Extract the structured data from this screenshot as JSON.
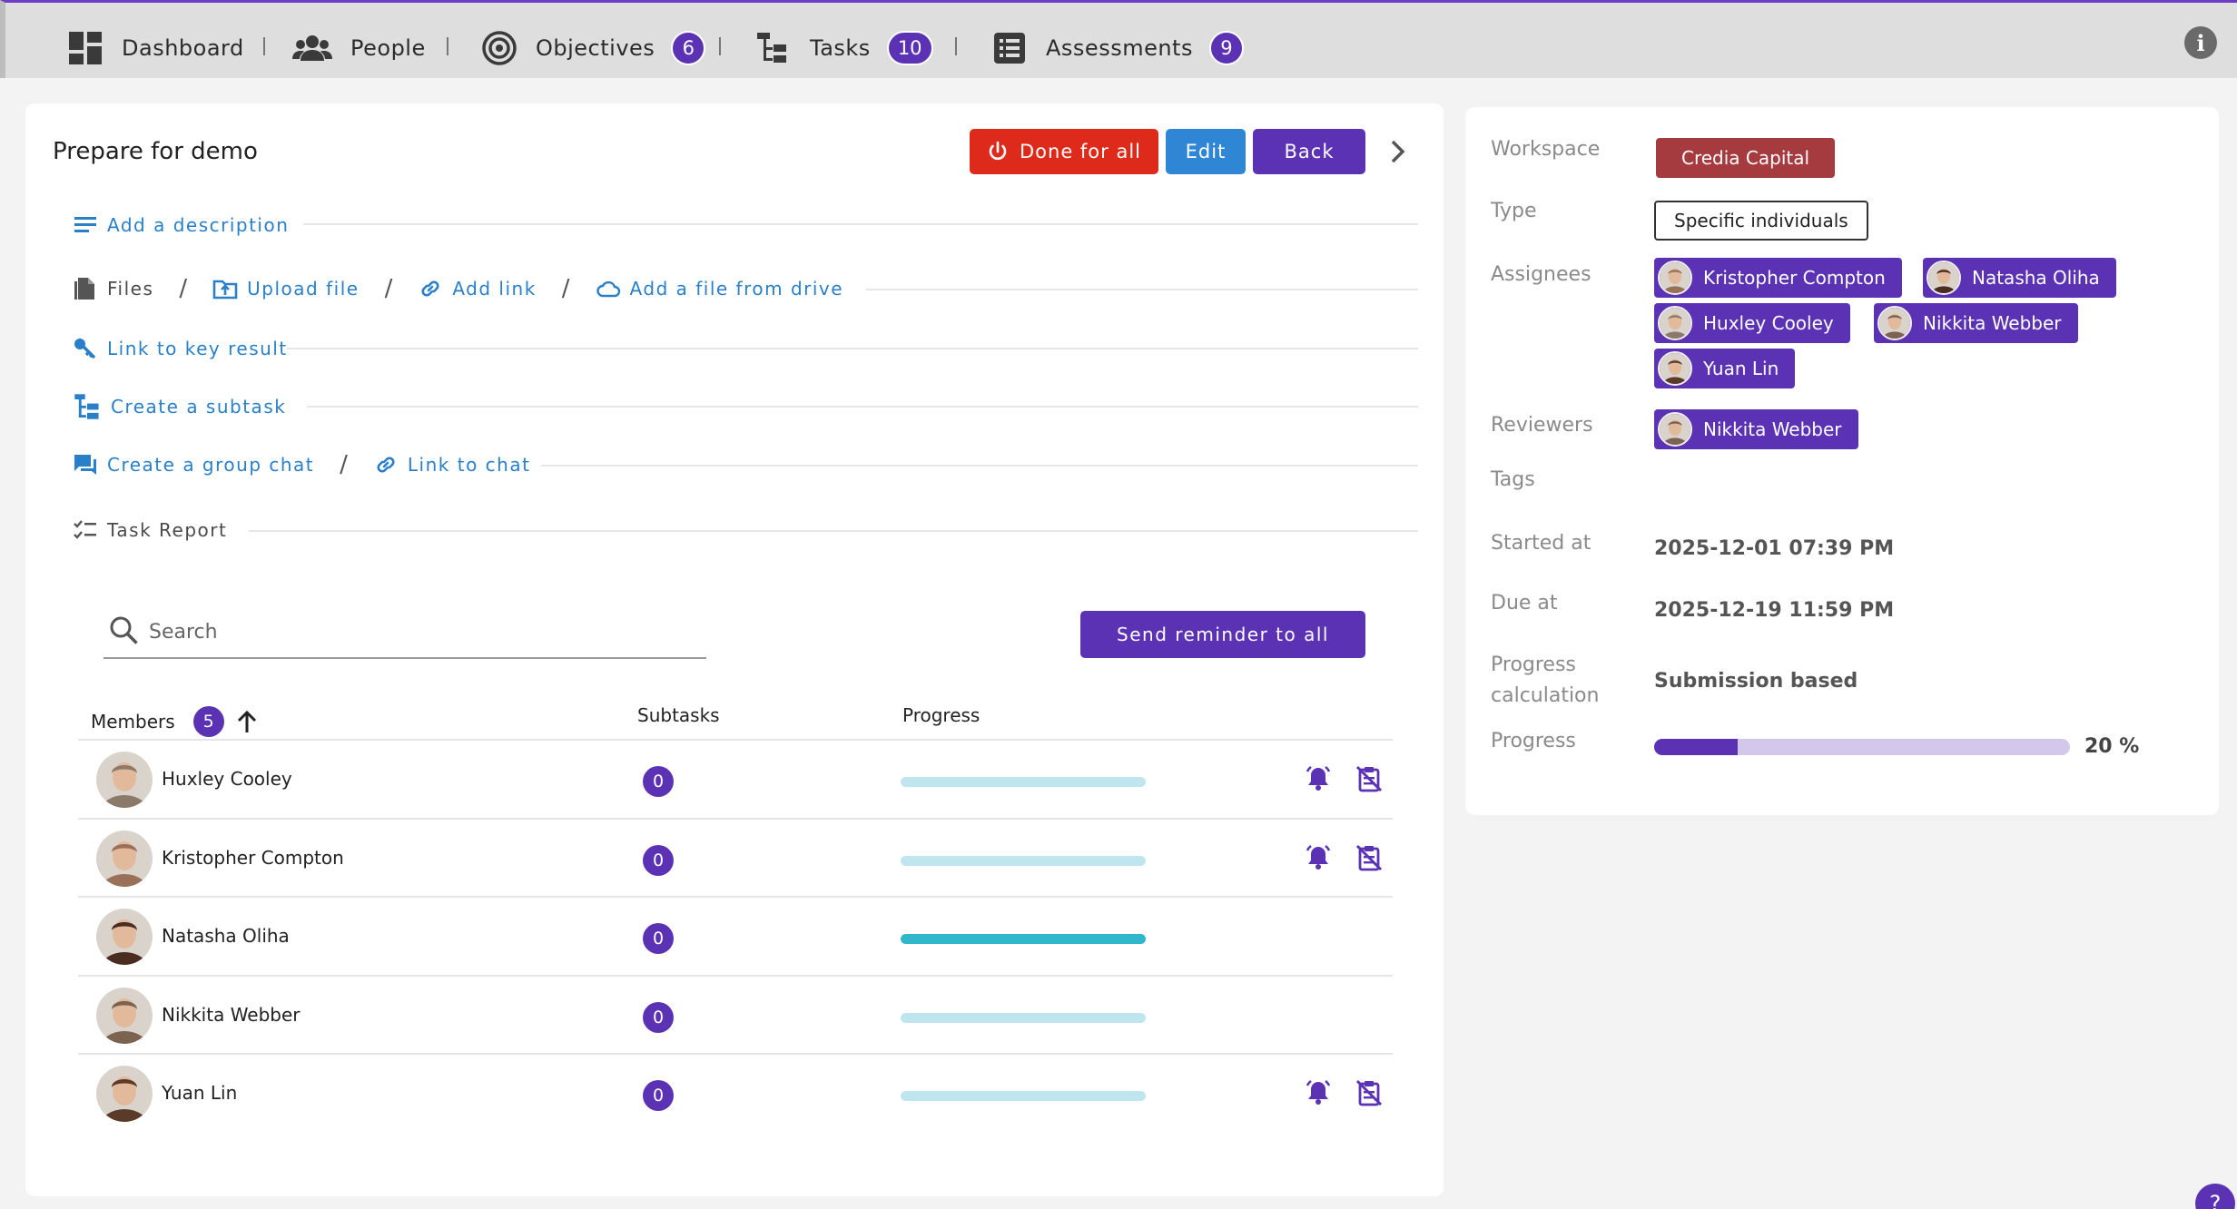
{
  "nav": {
    "dashboard": {
      "label": "Dashboard",
      "icon": "dashboard-icon"
    },
    "people": {
      "label": "People",
      "icon": "people-icon"
    },
    "objectives": {
      "label": "Objectives",
      "icon": "target-icon",
      "count": "6"
    },
    "tasks": {
      "label": "Tasks",
      "icon": "tasks-icon",
      "count": "10"
    },
    "assessments": {
      "label": "Assessments",
      "icon": "assessments-icon",
      "count": "9"
    },
    "info_label": "i"
  },
  "task": {
    "title": "Prepare for demo",
    "buttons": {
      "done_for_all": "Done for all",
      "edit": "Edit",
      "back": "Back"
    },
    "actions": {
      "add_description": "Add a description",
      "files": "Files",
      "upload_file": "Upload file",
      "add_link": "Add link",
      "add_file_from_drive": "Add a file from drive",
      "link_to_key_result": "Link to key result",
      "create_subtask": "Create a subtask",
      "create_group_chat": "Create a group chat",
      "link_to_chat": "Link to chat",
      "task_report": "Task Report",
      "slash": "/"
    },
    "search": {
      "placeholder": "Search",
      "value": ""
    },
    "send_reminder": "Send reminder to all",
    "table": {
      "members_header": "Members",
      "members_count": "5",
      "subtasks_header": "Subtasks",
      "progress_header": "Progress",
      "rows": [
        {
          "name": "Huxley Cooley",
          "subtasks": "0",
          "progress": 0,
          "actions": true,
          "avatar_color": "#8b7a6a"
        },
        {
          "name": "Kristopher Compton",
          "subtasks": "0",
          "progress": 0,
          "actions": true,
          "avatar_color": "#9a7058"
        },
        {
          "name": "Natasha Oliha",
          "subtasks": "0",
          "progress": 1,
          "actions": false,
          "avatar_color": "#4a2c20"
        },
        {
          "name": "Nikkita Webber",
          "subtasks": "0",
          "progress": 0,
          "actions": false,
          "avatar_color": "#7c6250"
        },
        {
          "name": "Yuan Lin",
          "subtasks": "0",
          "progress": 0,
          "actions": true,
          "avatar_color": "#5a3a28"
        }
      ]
    }
  },
  "details": {
    "workspace_label": "Workspace",
    "workspace_value": "Credia Capital",
    "type_label": "Type",
    "type_value": "Specific individuals",
    "assignees_label": "Assignees",
    "assignees": [
      "Kristopher Compton",
      "Natasha Oliha",
      "Huxley Cooley",
      "Nikkita Webber",
      "Yuan Lin"
    ],
    "reviewers_label": "Reviewers",
    "reviewers": [
      "Nikkita Webber"
    ],
    "tags_label": "Tags",
    "started_label": "Started at",
    "started_value": "2025-12-01 07:39 PM",
    "due_label": "Due at",
    "due_value": "2025-12-19 11:59 PM",
    "progress_calc_label_1": "Progress",
    "progress_calc_label_2": "calculation",
    "progress_calc_value": "Submission based",
    "progress_label": "Progress",
    "progress_value": 0.2,
    "progress_text": "20 %"
  },
  "colors": {
    "accent": "#5b32b4",
    "danger": "#dd2a1b",
    "info": "#2f86d5",
    "link": "#2a7fc9",
    "workspace": "#a53b3e"
  },
  "help_label": "?"
}
